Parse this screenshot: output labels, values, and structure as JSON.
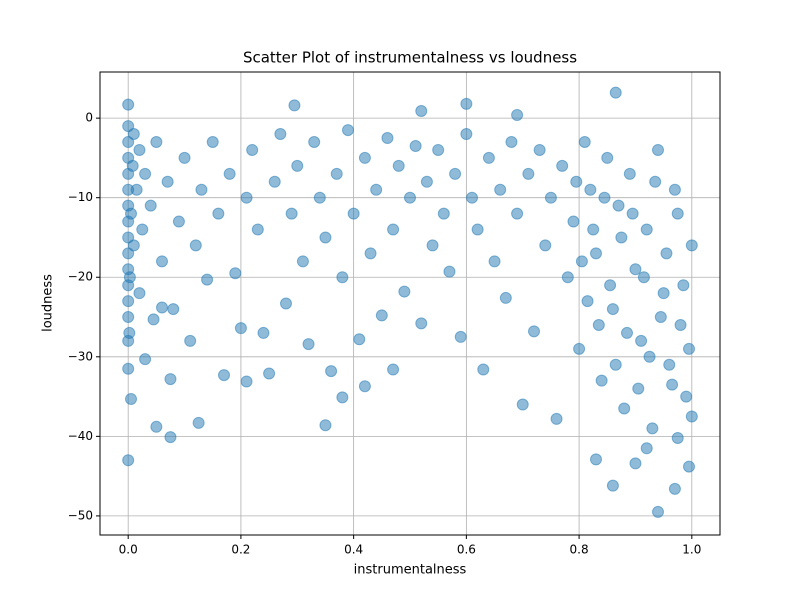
{
  "chart_data": {
    "type": "scatter",
    "title": "Scatter Plot of instrumentalness vs loudness",
    "xlabel": "instrumentalness",
    "ylabel": "loudness",
    "color": "#1f77b4",
    "alpha": 0.5,
    "grid": true,
    "xlim": [
      -0.05,
      1.05
    ],
    "ylim": [
      -52.4,
      5.8
    ],
    "xticks": [
      {
        "value": 0,
        "label": "0.0"
      },
      0.2,
      0.4,
      0.6,
      0.8,
      {
        "value": 1,
        "label": "1.0"
      }
    ],
    "yticks": [
      {
        "value": -50,
        "label": "−50"
      },
      {
        "value": -40,
        "label": "−40"
      },
      {
        "value": -30,
        "label": "−30"
      },
      {
        "value": -20,
        "label": "−20"
      },
      {
        "value": -10,
        "label": "−10"
      },
      0
    ],
    "x": [
      0,
      0,
      0,
      0,
      0,
      0,
      0,
      0,
      0,
      0,
      0,
      0,
      0,
      0,
      0,
      0.002,
      0.003,
      0.005,
      0.008,
      0.01,
      0.01,
      0.015,
      0.02,
      0.02,
      0.025,
      0.03,
      0.03,
      0.04,
      0.045,
      0.05,
      0.06,
      0.06,
      0.07,
      0.08,
      0.09,
      0.1,
      0.11,
      0.12,
      0.13,
      0.14,
      0.15,
      0.16,
      0.18,
      0.19,
      0.2,
      0.21,
      0.22,
      0.23,
      0.24,
      0.26,
      0.27,
      0.28,
      0.29,
      0.3,
      0.31,
      0.32,
      0.33,
      0.34,
      0.35,
      0.36,
      0.37,
      0.38,
      0.39,
      0.4,
      0.41,
      0.42,
      0.43,
      0.44,
      0.45,
      0.46,
      0.47,
      0.48,
      0.49,
      0.5,
      0.51,
      0.52,
      0.53,
      0.54,
      0.55,
      0.56,
      0.57,
      0.58,
      0.59,
      0.6,
      0.61,
      0.62,
      0.63,
      0.64,
      0.65,
      0.66,
      0.67,
      0.68,
      0.69,
      0.7,
      0.71,
      0.72,
      0.73,
      0.74,
      0.75,
      0.76,
      0.77,
      0.78,
      0.79,
      0.8,
      0.81,
      0.82,
      0.83,
      0.84,
      0.85,
      0.86,
      0.87,
      0.88,
      0.89,
      0.9,
      0.91,
      0.92,
      0.93,
      0.94,
      0.95,
      0.96,
      0.97,
      0.98,
      0.99,
      1,
      1,
      0.995,
      0.985,
      0.975,
      0.965,
      0.955,
      0.945,
      0.935,
      0.925,
      0.915,
      0.905,
      0.895,
      0.885,
      0.875,
      0.865,
      0.855,
      0.845,
      0.835,
      0.825,
      0.815,
      0.805,
      0.795,
      0,
      0,
      0.005,
      0.05,
      0.075,
      0.125,
      0.075,
      0.17,
      0.21,
      0.25,
      0.295,
      0.35,
      0.38,
      0.42,
      0.47,
      0.6,
      0.865,
      0.83,
      0.86,
      0.9,
      0.92,
      0.94,
      0.97,
      0.995,
      0.975,
      0.52,
      0.69
    ],
    "values": [
      -1,
      -3,
      -5,
      -7,
      -9,
      -11,
      -13,
      -15,
      -17,
      -19,
      -21,
      -23,
      -25,
      -28,
      -31.5,
      -27,
      -20,
      -12,
      -6,
      -2,
      -16,
      -9,
      -4,
      -22,
      -14,
      -7,
      -30.3,
      -11,
      -25.3,
      -3,
      -18,
      -23.8,
      -8,
      -24,
      -13,
      -5,
      -28,
      -16,
      -9,
      -20.3,
      -3,
      -12,
      -7,
      -19.5,
      -26.4,
      -10,
      -4,
      -14,
      -27,
      -8,
      -2,
      -23.3,
      -12,
      -6,
      -18,
      -28.4,
      -3,
      -10,
      -15,
      -31.8,
      -7,
      -20,
      -1.5,
      -12,
      -27.8,
      -5,
      -17,
      -9,
      -24.8,
      -2.5,
      -14,
      -6,
      -21.8,
      -10,
      -3.5,
      -25.8,
      -8,
      -16,
      -4,
      -12,
      -19.3,
      -7,
      -27.5,
      -2,
      -10,
      -14,
      -31.6,
      -5,
      -18,
      -9,
      -22.6,
      -3,
      -12,
      -36,
      -7,
      -26.8,
      -4,
      -16,
      -10,
      -37.8,
      -6,
      -20,
      -13,
      -29,
      -3,
      -9,
      -17,
      -33,
      -5,
      -24,
      -11,
      -36.5,
      -7,
      -19,
      -28,
      -14,
      -39,
      -4,
      -22,
      -31,
      -9,
      -26,
      -35,
      -16,
      -37.5,
      -29,
      -21,
      -12,
      -33.5,
      -17,
      -25,
      -8,
      -30,
      -20,
      -34,
      -12,
      -27,
      -15,
      -31,
      -21,
      -10,
      -26,
      -14,
      -23,
      -18,
      -8,
      1.7,
      -43,
      -35.3,
      -38.8,
      -40.1,
      -38.3,
      -32.8,
      -32.3,
      -33.1,
      -32.1,
      1.6,
      -38.6,
      -35.1,
      -33.7,
      -31.6,
      1.8,
      3.2,
      -42.9,
      -46.2,
      -43.4,
      -41.5,
      -49.5,
      -46.6,
      -43.8,
      -40.2,
      0.9,
      0.4
    ]
  }
}
